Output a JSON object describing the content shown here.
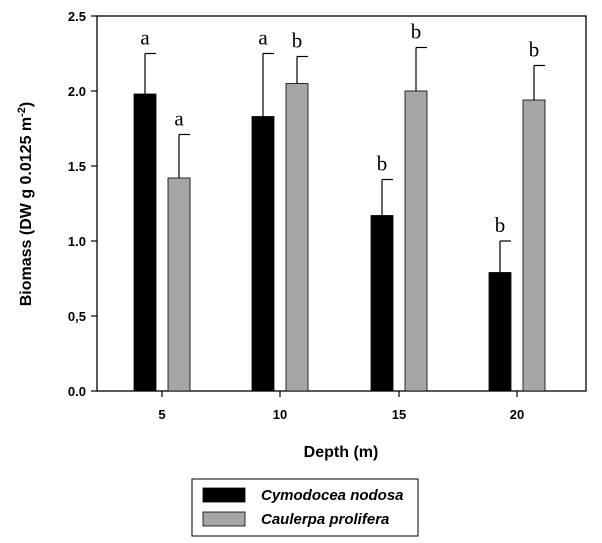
{
  "chart_data": {
    "type": "bar",
    "xlabel": "Depth (m)",
    "ylabel_main": "Biomass (DW g 0.0125 m",
    "ylabel_sup": "-2",
    "ylabel_end": ")",
    "categories": [
      "5",
      "10",
      "15",
      "20"
    ],
    "yticks": [
      "0.0",
      "0,5",
      "1.0",
      "1.5",
      "2.0",
      "2.5"
    ],
    "ylim": [
      0,
      2.5
    ],
    "grid": false,
    "legend_position": "bottom",
    "series": [
      {
        "name": "Cymodocea nodosa",
        "color": "#000000",
        "values": [
          1.98,
          1.83,
          1.17,
          0.79
        ],
        "errors": [
          0.27,
          0.42,
          0.24,
          0.21
        ],
        "letters": [
          "a",
          "a",
          "b",
          "b"
        ]
      },
      {
        "name": "Caulerpa prolifera",
        "color": "#a6a6a6",
        "values": [
          1.42,
          2.05,
          2.0,
          1.94
        ],
        "errors": [
          0.29,
          0.18,
          0.29,
          0.23
        ],
        "letters": [
          "a",
          "b",
          "b",
          "b"
        ]
      }
    ]
  }
}
